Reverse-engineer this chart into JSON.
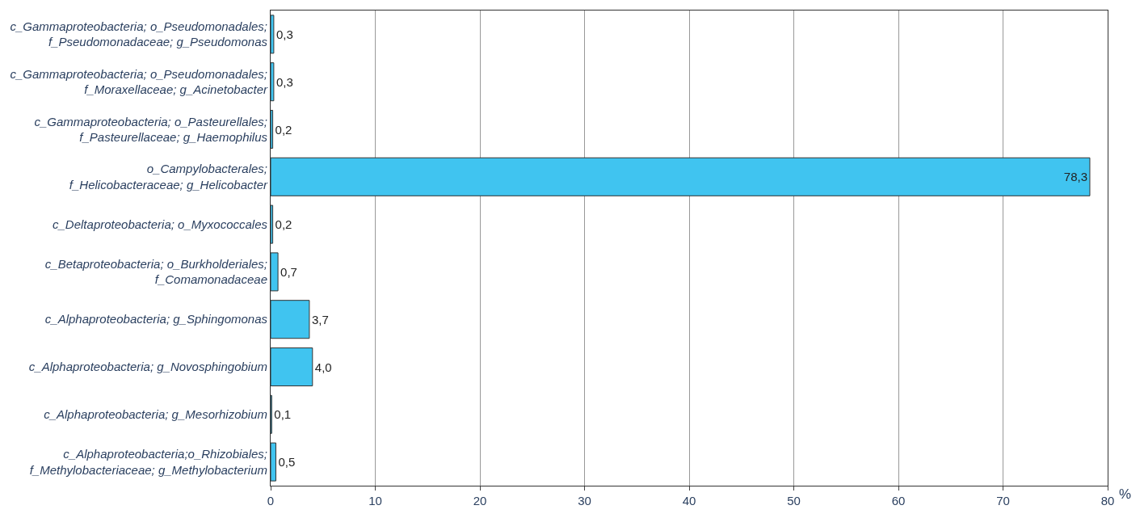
{
  "chart_data": {
    "type": "bar",
    "orientation": "horizontal",
    "xlabel": "%",
    "categories": [
      "c_Gammaproteobacteria; o_Pseudomonadales;\nf_Pseudomonadaceae; g_Pseudomonas",
      "c_Gammaproteobacteria; o_Pseudomonadales;\nf_Moraxellaceae; g_Acinetobacter",
      "c_Gammaproteobacteria; o_Pasteurellales;\nf_Pasteurellaceae; g_Haemophilus",
      "o_Campylobacterales;\nf_Helicobacteraceae; g_Helicobacter",
      "c_Deltaproteobacteria; o_Myxococcales",
      "c_Betaproteobacteria; o_Burkholderiales;\nf_Comamonadaceae",
      "c_Alphaproteobacteria; g_Sphingomonas",
      "c_Alphaproteobacteria; g_Novosphingobium",
      "c_Alphaproteobacteria; g_Mesorhizobium",
      "c_Alphaproteobacteria;o_Rhizobiales;\nf_Methylobacteriaceae; g_Methylobacterium"
    ],
    "values": [
      0.3,
      0.3,
      0.2,
      78.3,
      0.2,
      0.7,
      3.7,
      4.0,
      0.1,
      0.5
    ],
    "value_labels": [
      "0,3",
      "0,3",
      "0,2",
      "78,3",
      "0,2",
      "0,7",
      "3,7",
      "4,0",
      "0,1",
      "0,5"
    ],
    "color": "#40c4f0",
    "xlim": [
      0,
      80
    ],
    "xticks": [
      0,
      10,
      20,
      30,
      40,
      50,
      60,
      70,
      80
    ],
    "grid": "x"
  }
}
